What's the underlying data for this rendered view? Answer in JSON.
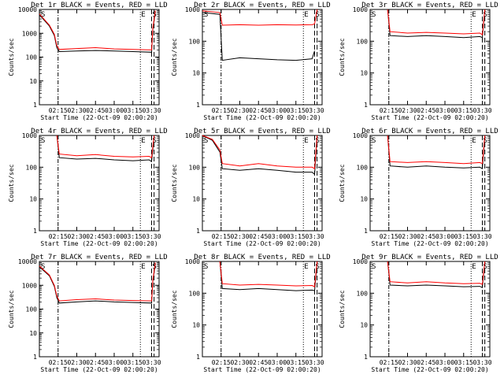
{
  "figure": {
    "x_tick_labels": [
      "02:15",
      "02:30",
      "02:45",
      "03:00",
      "03:15",
      "03:30"
    ],
    "y_tick_labels": [
      "1",
      "10",
      "100",
      "1000"
    ],
    "y_tick_labels_wide": [
      "1",
      "10",
      "100",
      "1000",
      "10000"
    ],
    "ylabel": "Counts/sec",
    "xlabel": "Start Time (22-Oct-09 02:00:20)",
    "marker_S": "S",
    "marker_E": "E",
    "colors": {
      "events": "#000000",
      "lld": "#ff0000",
      "axes": "#000000",
      "background": "#ffffff"
    }
  },
  "chart_data": [
    {
      "type": "line",
      "title": "Det 1r BLACK = Events, RED = LLD",
      "xlim": [
        "02:00",
        "03:36"
      ],
      "ylog": true,
      "ylim": [
        1,
        10000
      ],
      "series": [
        {
          "name": "BLACK = Events",
          "x": [
            "02:00",
            "02:08",
            "02:12",
            "02:14",
            "02:16",
            "02:30",
            "02:45",
            "03:00",
            "03:15",
            "03:30",
            "03:31",
            "03:33"
          ],
          "values": [
            6000,
            2000,
            800,
            250,
            170,
            180,
            190,
            180,
            170,
            160,
            1500,
            8000
          ]
        },
        {
          "name": "RED = LLD",
          "x": [
            "02:00",
            "02:08",
            "02:12",
            "02:14",
            "02:16",
            "02:30",
            "02:45",
            "03:00",
            "03:15",
            "03:30",
            "03:31",
            "03:33"
          ],
          "values": [
            6500,
            2200,
            900,
            300,
            210,
            230,
            250,
            220,
            210,
            200,
            1700,
            9000
          ]
        }
      ],
      "vlines": {
        "dashdot": [
          "02:15"
        ],
        "dotted": [
          "03:21"
        ],
        "dashed": [
          "03:30",
          "03:32"
        ]
      }
    },
    {
      "type": "line",
      "title": "Det 2r BLACK = Events, RED = LLD",
      "xlim": [
        "02:00",
        "03:36"
      ],
      "ylog": true,
      "ylim": [
        1,
        1000
      ],
      "series": [
        {
          "name": "BLACK = Events",
          "x": [
            "02:00",
            "02:14",
            "02:16",
            "02:30",
            "02:45",
            "03:00",
            "03:15",
            "03:28",
            "03:30"
          ],
          "values": [
            800,
            700,
            25,
            30,
            28,
            26,
            25,
            28,
            50
          ]
        },
        {
          "name": "RED = LLD",
          "x": [
            "02:00",
            "02:14",
            "02:16",
            "02:30",
            "02:45",
            "03:00",
            "03:15",
            "03:28",
            "03:30",
            "03:32"
          ],
          "values": [
            900,
            800,
            320,
            330,
            320,
            330,
            325,
            330,
            350,
            1000
          ]
        }
      ],
      "vlines": {
        "dashdot": [
          "02:15"
        ],
        "dotted": [
          "03:21"
        ],
        "dashed": [
          "03:30",
          "03:32"
        ]
      }
    },
    {
      "type": "line",
      "title": "Det 3r BLACK = Events, RED = LLD",
      "xlim": [
        "02:00",
        "03:36"
      ],
      "ylog": true,
      "ylim": [
        1,
        1000
      ],
      "series": [
        {
          "name": "BLACK = Events",
          "x": [
            "02:14",
            "02:16",
            "02:30",
            "02:45",
            "03:00",
            "03:15",
            "03:28",
            "03:30",
            "03:32"
          ],
          "values": [
            1000,
            150,
            140,
            150,
            140,
            130,
            140,
            130,
            1000
          ]
        },
        {
          "name": "RED = LLD",
          "x": [
            "02:14",
            "02:16",
            "02:30",
            "02:45",
            "03:00",
            "03:15",
            "03:28",
            "03:30",
            "03:32"
          ],
          "values": [
            1000,
            200,
            180,
            190,
            180,
            170,
            180,
            160,
            1000
          ]
        }
      ],
      "vlines": {
        "dashdot": [
          "02:15"
        ],
        "dotted": [
          "03:21"
        ],
        "dashed": [
          "03:30",
          "03:32"
        ]
      }
    },
    {
      "type": "line",
      "title": "Det 4r BLACK = Events, RED = LLD",
      "xlim": [
        "02:00",
        "03:36"
      ],
      "ylog": true,
      "ylim": [
        1,
        1000
      ],
      "series": [
        {
          "name": "BLACK = Events",
          "x": [
            "02:14",
            "02:16",
            "02:30",
            "02:45",
            "03:00",
            "03:15",
            "03:28",
            "03:30",
            "03:32"
          ],
          "values": [
            1000,
            200,
            180,
            190,
            170,
            160,
            170,
            150,
            1000
          ]
        },
        {
          "name": "RED = LLD",
          "x": [
            "02:14",
            "02:16",
            "02:30",
            "02:45",
            "03:00",
            "03:15",
            "03:28",
            "03:30",
            "03:32"
          ],
          "values": [
            1000,
            260,
            230,
            250,
            220,
            210,
            220,
            200,
            1000
          ]
        }
      ],
      "vlines": {
        "dashdot": [
          "02:15"
        ],
        "dotted": [
          "03:21"
        ],
        "dashed": [
          "03:30",
          "03:32"
        ]
      }
    },
    {
      "type": "line",
      "title": "Det 5r BLACK = Events, RED = LLD",
      "xlim": [
        "02:00",
        "03:36"
      ],
      "ylog": true,
      "ylim": [
        1,
        1000
      ],
      "series": [
        {
          "name": "BLACK = Events",
          "x": [
            "02:00",
            "02:08",
            "02:14",
            "02:16",
            "02:30",
            "02:45",
            "03:00",
            "03:15",
            "03:28",
            "03:30",
            "03:32"
          ],
          "values": [
            1000,
            700,
            300,
            90,
            80,
            90,
            80,
            70,
            70,
            60,
            1000
          ]
        },
        {
          "name": "RED = LLD",
          "x": [
            "02:00",
            "02:08",
            "02:14",
            "02:16",
            "02:30",
            "02:45",
            "03:00",
            "03:15",
            "03:28",
            "03:30",
            "03:32"
          ],
          "values": [
            1000,
            750,
            350,
            130,
            110,
            130,
            110,
            100,
            100,
            90,
            1000
          ]
        }
      ],
      "vlines": {
        "dashdot": [
          "02:15"
        ],
        "dotted": [
          "03:21"
        ],
        "dashed": [
          "03:30",
          "03:32"
        ]
      }
    },
    {
      "type": "line",
      "title": "Det 6r BLACK = Events, RED = LLD",
      "xlim": [
        "02:00",
        "03:36"
      ],
      "ylog": true,
      "ylim": [
        1,
        1000
      ],
      "series": [
        {
          "name": "BLACK = Events",
          "x": [
            "02:14",
            "02:16",
            "02:30",
            "02:45",
            "03:00",
            "03:15",
            "03:28",
            "03:30",
            "03:32"
          ],
          "values": [
            1000,
            110,
            100,
            110,
            100,
            95,
            100,
            90,
            1000
          ]
        },
        {
          "name": "RED = LLD",
          "x": [
            "02:14",
            "02:16",
            "02:30",
            "02:45",
            "03:00",
            "03:15",
            "03:28",
            "03:30",
            "03:32"
          ],
          "values": [
            1000,
            150,
            140,
            150,
            140,
            130,
            140,
            130,
            1000
          ]
        }
      ],
      "vlines": {
        "dashdot": [
          "02:15"
        ],
        "dotted": [
          "03:21"
        ],
        "dashed": [
          "03:30",
          "03:32"
        ]
      }
    },
    {
      "type": "line",
      "title": "Det 7r BLACK = Events, RED = LLD",
      "xlim": [
        "02:00",
        "03:36"
      ],
      "ylog": true,
      "ylim": [
        1,
        10000
      ],
      "series": [
        {
          "name": "BLACK = Events",
          "x": [
            "02:00",
            "02:08",
            "02:12",
            "02:14",
            "02:16",
            "02:30",
            "02:45",
            "03:00",
            "03:15",
            "03:30",
            "03:31",
            "03:33"
          ],
          "values": [
            6000,
            2500,
            900,
            300,
            180,
            200,
            220,
            200,
            190,
            180,
            1500,
            8000
          ]
        },
        {
          "name": "RED = LLD",
          "x": [
            "02:00",
            "02:08",
            "02:12",
            "02:14",
            "02:16",
            "02:30",
            "02:45",
            "03:00",
            "03:15",
            "03:30",
            "03:31",
            "03:33"
          ],
          "values": [
            6500,
            2700,
            1000,
            350,
            220,
            250,
            270,
            240,
            230,
            220,
            1700,
            9000
          ]
        }
      ],
      "vlines": {
        "dashdot": [
          "02:15"
        ],
        "dotted": [
          "03:21"
        ],
        "dashed": [
          "03:30",
          "03:32"
        ]
      }
    },
    {
      "type": "line",
      "title": "Det 8r BLACK = Events, RED = LLD",
      "xlim": [
        "02:00",
        "03:36"
      ],
      "ylog": true,
      "ylim": [
        1,
        1000
      ],
      "series": [
        {
          "name": "BLACK = Events",
          "x": [
            "02:14",
            "02:16",
            "02:30",
            "02:45",
            "03:00",
            "03:15",
            "03:28",
            "03:30",
            "03:32"
          ],
          "values": [
            1000,
            140,
            130,
            140,
            130,
            120,
            125,
            120,
            1000
          ]
        },
        {
          "name": "RED = LLD",
          "x": [
            "02:14",
            "02:16",
            "02:30",
            "02:45",
            "03:00",
            "03:15",
            "03:28",
            "03:30",
            "03:32"
          ],
          "values": [
            1000,
            200,
            180,
            190,
            180,
            170,
            175,
            160,
            1000
          ]
        }
      ],
      "vlines": {
        "dashdot": [
          "02:15"
        ],
        "dotted": [
          "03:21"
        ],
        "dashed": [
          "03:30",
          "03:32"
        ]
      }
    },
    {
      "type": "line",
      "title": "Det 9r BLACK = Events, RED = LLD",
      "xlim": [
        "02:00",
        "03:36"
      ],
      "ylog": true,
      "ylim": [
        1,
        1000
      ],
      "series": [
        {
          "name": "BLACK = Events",
          "x": [
            "02:14",
            "02:16",
            "02:30",
            "02:45",
            "03:00",
            "03:15",
            "03:28",
            "03:30",
            "03:32"
          ],
          "values": [
            1000,
            180,
            170,
            180,
            170,
            160,
            165,
            150,
            1000
          ]
        },
        {
          "name": "RED = LLD",
          "x": [
            "02:14",
            "02:16",
            "02:30",
            "02:45",
            "03:00",
            "03:15",
            "03:28",
            "03:30",
            "03:32"
          ],
          "values": [
            1000,
            230,
            210,
            230,
            210,
            200,
            205,
            190,
            1000
          ]
        }
      ],
      "vlines": {
        "dashdot": [
          "02:15"
        ],
        "dotted": [
          "03:21"
        ],
        "dashed": [
          "03:30",
          "03:32"
        ]
      }
    }
  ]
}
